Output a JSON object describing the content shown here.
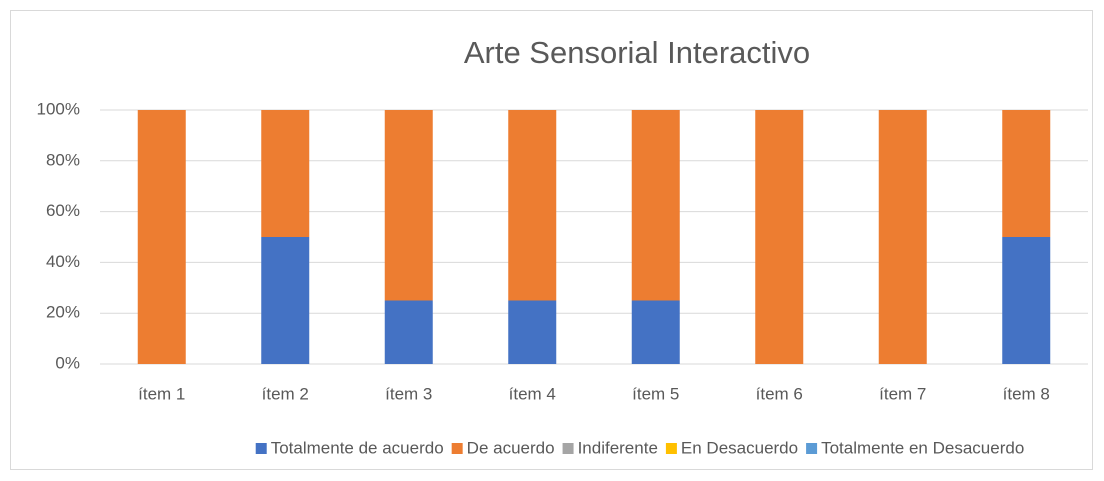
{
  "chart_data": {
    "type": "stacked_bar",
    "title": "Arte Sensorial Interactivo",
    "categories": [
      "ítem 1",
      "ítem 2",
      "ítem 3",
      "ítem 4",
      "ítem 5",
      "ítem 6",
      "ítem 7",
      "ítem 8"
    ],
    "series": [
      {
        "name": "Totalmente de acuerdo",
        "color": "#4472c4",
        "values": [
          0,
          50,
          25,
          25,
          25,
          0,
          0,
          50
        ]
      },
      {
        "name": "De acuerdo",
        "color": "#ed7d31",
        "values": [
          100,
          50,
          75,
          75,
          75,
          100,
          100,
          50
        ]
      },
      {
        "name": "Indiferente",
        "color": "#a5a5a5",
        "values": [
          0,
          0,
          0,
          0,
          0,
          0,
          0,
          0
        ]
      },
      {
        "name": "En Desacuerdo",
        "color": "#ffc000",
        "values": [
          0,
          0,
          0,
          0,
          0,
          0,
          0,
          0
        ]
      },
      {
        "name": "Totalmente en Desacuerdo",
        "color": "#5b9bd5",
        "values": [
          0,
          0,
          0,
          0,
          0,
          0,
          0,
          0
        ]
      }
    ],
    "ylim": [
      0,
      100
    ],
    "yticks": [
      {
        "value": 0,
        "label": "0%"
      },
      {
        "value": 20,
        "label": "20%"
      },
      {
        "value": 40,
        "label": "40%"
      },
      {
        "value": 60,
        "label": "60%"
      },
      {
        "value": 80,
        "label": "80%"
      },
      {
        "value": 100,
        "label": "100%"
      }
    ],
    "grid": true,
    "legend": "bottom"
  }
}
